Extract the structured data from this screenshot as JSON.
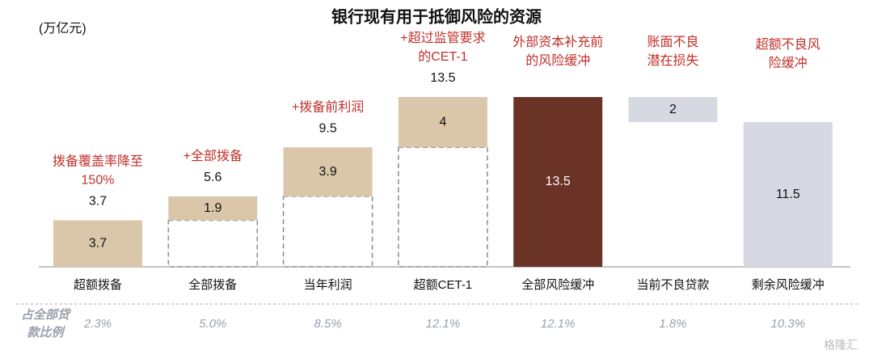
{
  "chart_data": {
    "type": "waterfall",
    "title": "银行现有用于抵御风险的资源",
    "unit_label": "(万亿元)",
    "categories": [
      "超额拨备",
      "全部拨备",
      "当年利润",
      "超额CET-1",
      "全部风险缓冲",
      "当前不良贷款",
      "剩余风险缓冲"
    ],
    "values": [
      3.7,
      1.9,
      3.9,
      4.0,
      13.5,
      2.0,
      11.5
    ],
    "measures": [
      "increase",
      "increase",
      "increase",
      "increase",
      "total",
      "decrease",
      "total"
    ],
    "colors": [
      "#dac7a9",
      "#dac7a9",
      "#dac7a9",
      "#dac7a9",
      "#6a3326",
      "#d6d9e1",
      "#d6d9e1"
    ],
    "total_labels": [
      3.7,
      5.6,
      9.5,
      13.5,
      null,
      null,
      null
    ],
    "annotations": [
      [
        "拨备覆盖率降至",
        "150%"
      ],
      [
        "+全部拨备"
      ],
      [
        "+拨备前利润"
      ],
      [
        "+超过监管要求",
        "的CET-1"
      ],
      [
        "外部资本补充前",
        "的风险缓冲"
      ],
      [
        "账面不良",
        "潜在损失"
      ],
      [
        "超额不良风",
        "险缓冲"
      ]
    ],
    "ratio_title": [
      "占全部贷",
      "款比例"
    ],
    "ratio_values": [
      2.3,
      5.0,
      8.5,
      12.1,
      12.1,
      1.8,
      10.3
    ],
    "ratio_value_labels": [
      "2.3%",
      "5.0%",
      "8.5%",
      "12.1%",
      "12.1%",
      "1.8%",
      "10.3%"
    ],
    "watermark": "格隆汇"
  }
}
